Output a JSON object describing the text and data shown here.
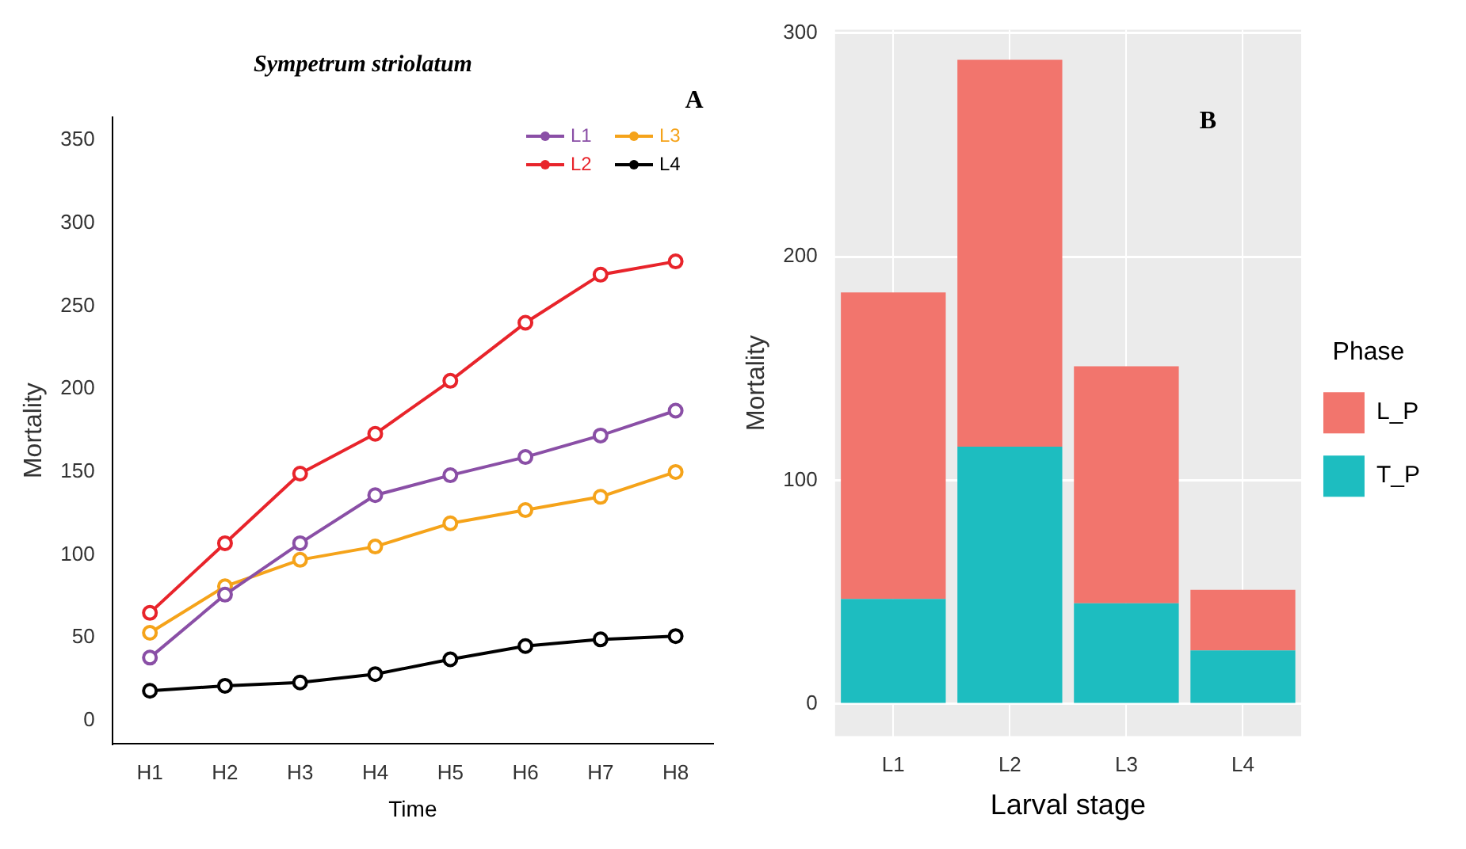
{
  "chart_data": [
    {
      "type": "line",
      "title": "Sympetrum striolatum",
      "xlabel": "Time",
      "ylabel": "Mortality",
      "annotations": [
        "A"
      ],
      "categories": [
        "H1",
        "H2",
        "H3",
        "H4",
        "H5",
        "H6",
        "H7",
        "H8"
      ],
      "series": [
        {
          "name": "L1",
          "color": "#8a4fa6",
          "values": [
            38,
            76,
            107,
            136,
            148,
            159,
            172,
            187
          ]
        },
        {
          "name": "L2",
          "color": "#e8242b",
          "values": [
            65,
            107,
            149,
            173,
            205,
            240,
            269,
            277
          ]
        },
        {
          "name": "L3",
          "color": "#f5a31a",
          "values": [
            53,
            81,
            97,
            105,
            119,
            127,
            135,
            150
          ]
        },
        {
          "name": "L4",
          "color": "#000000",
          "values": [
            18,
            21,
            23,
            28,
            37,
            45,
            49,
            51
          ]
        }
      ],
      "ylim": [
        -14,
        364
      ],
      "yticks": [
        0,
        50,
        100,
        150,
        200,
        250,
        300,
        350
      ],
      "grid": false,
      "legend": "top right",
      "marker": "circle",
      "line_style": "solid"
    },
    {
      "type": "bar",
      "stacked": true,
      "xlabel": "Larval stage",
      "ylabel": "Mortality",
      "annotations": [
        "B"
      ],
      "legend_title": "Phase",
      "categories": [
        "L1",
        "L2",
        "L3",
        "L4"
      ],
      "series": [
        {
          "name": "T_P",
          "color": "#1dbdc0",
          "values": [
            47,
            115,
            45,
            24
          ]
        },
        {
          "name": "L_P",
          "color": "#f2756d",
          "values": [
            137,
            173,
            106,
            27
          ]
        }
      ],
      "ylim": [
        -14.4,
        301.4
      ],
      "yticks": [
        0,
        100,
        200,
        300
      ],
      "grid": true,
      "legend": "right"
    }
  ]
}
